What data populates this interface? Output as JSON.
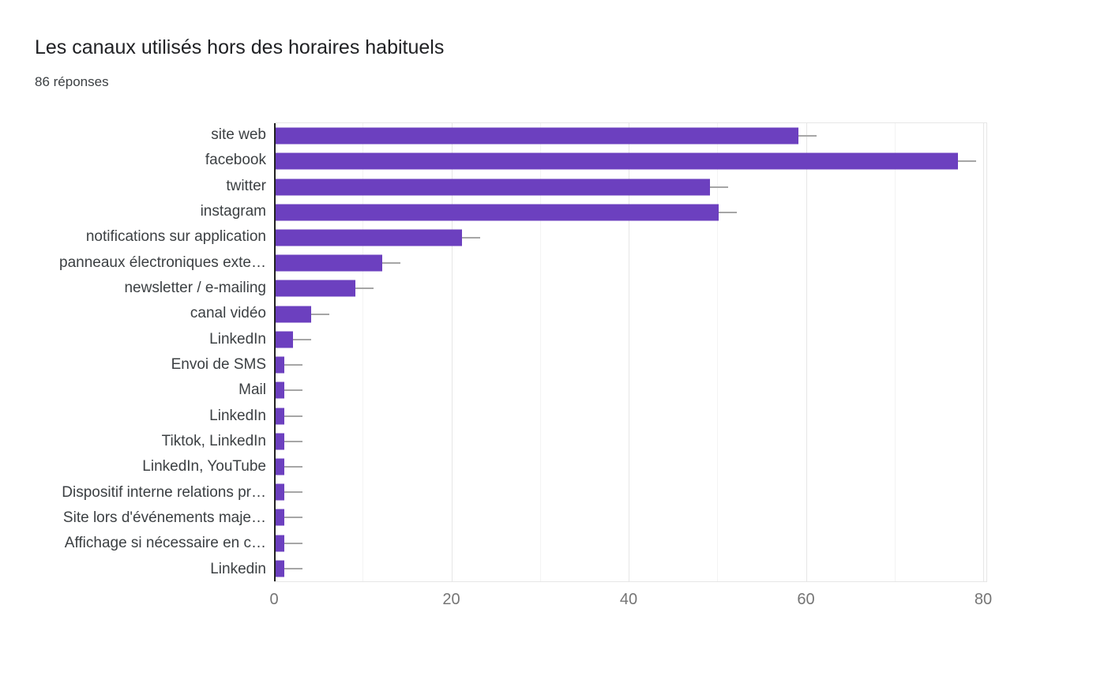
{
  "header": {
    "title": "Les canaux utilisés hors des horaires habituels",
    "subtitle": "86 réponses"
  },
  "chart_data": {
    "type": "bar",
    "orientation": "horizontal",
    "title": "Les canaux utilisés hors des horaires habituels",
    "subtitle": "86 réponses",
    "categories": [
      "site web",
      "facebook",
      "twitter",
      "instagram",
      "notifications sur application",
      "panneaux électroniques exte…",
      "newsletter / e-mailing",
      "canal vidéo",
      "LinkedIn",
      "Envoi de SMS",
      "Mail",
      "LinkedIn",
      "Tiktok, LinkedIn",
      "LinkedIn, YouTube",
      "Dispositif interne relations pr…",
      "Site lors d'événements maje…",
      "Affichage si nécessaire en c…",
      "Linkedin"
    ],
    "values": [
      59,
      77,
      49,
      50,
      21,
      12,
      9,
      4,
      2,
      1,
      1,
      1,
      1,
      1,
      1,
      1,
      1,
      1
    ],
    "xlabel": "",
    "ylabel": "",
    "xlim": [
      0,
      80
    ],
    "xticks": [
      0,
      20,
      40,
      60,
      80
    ],
    "grid": true,
    "legend": "none",
    "colors": {
      "bar": "#6c40bf",
      "whisker": "#a6a6a6",
      "axis_line": "#212121",
      "grid_major": "#e6e6e6",
      "grid_minor": "#f3f3f3",
      "frame": "#e6e6e6",
      "title": "#202124",
      "subtitle": "#3c4043",
      "category_label": "#3c4043",
      "tick_label": "#757575"
    }
  }
}
